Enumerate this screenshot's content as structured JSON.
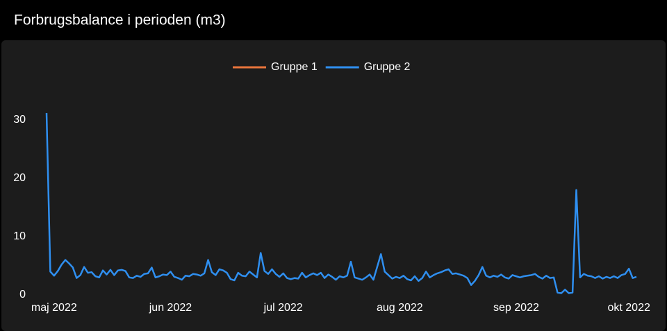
{
  "chart_data": {
    "type": "line",
    "title": "Forbrugsbalance i perioden (m3)",
    "categories": [
      null,
      null,
      "maj 2022",
      null,
      null,
      null,
      null,
      null,
      null,
      null,
      null,
      null,
      null,
      null,
      null,
      null,
      null,
      null,
      null,
      null,
      null,
      null,
      null,
      null,
      null,
      null,
      null,
      null,
      null,
      null,
      null,
      null,
      null,
      "jun 2022",
      null,
      null,
      null,
      null,
      null,
      null,
      null,
      null,
      null,
      null,
      null,
      null,
      null,
      null,
      null,
      null,
      null,
      null,
      null,
      null,
      null,
      null,
      null,
      null,
      null,
      null,
      null,
      null,
      null,
      "jul 2022",
      null,
      null,
      null,
      null,
      null,
      null,
      null,
      null,
      null,
      null,
      null,
      null,
      null,
      null,
      null,
      null,
      null,
      null,
      null,
      null,
      null,
      null,
      null,
      null,
      null,
      null,
      null,
      null,
      null,
      null,
      "aug 2022",
      null,
      null,
      null,
      null,
      null,
      null,
      null,
      null,
      null,
      null,
      null,
      null,
      null,
      null,
      null,
      null,
      null,
      null,
      null,
      null,
      null,
      null,
      null,
      null,
      null,
      null,
      null,
      null,
      null,
      null,
      "sep 2022",
      null,
      null,
      null,
      null,
      null,
      null,
      null,
      null,
      null,
      null,
      null,
      null,
      null,
      null,
      null,
      null,
      null,
      null,
      null,
      null,
      null,
      null,
      null,
      null,
      null,
      null,
      null,
      null,
      null,
      "okt 2022",
      null,
      null
    ],
    "series": [
      {
        "name": "Gruppe 1",
        "color": "#e8743b",
        "values": [
          null,
          null,
          null,
          null,
          null,
          null,
          null,
          null,
          null,
          null,
          null,
          null,
          null,
          null,
          null,
          null,
          null,
          null,
          null,
          null,
          null,
          null,
          null,
          null,
          null,
          null,
          null,
          null,
          null,
          null,
          null,
          null,
          null,
          null,
          null,
          null,
          null,
          null,
          null,
          null,
          null,
          null,
          null,
          null,
          null,
          null,
          null,
          null,
          null,
          null,
          null,
          null,
          null,
          null,
          null,
          null,
          null,
          null,
          null,
          null,
          null,
          null,
          null,
          null,
          null,
          null,
          null,
          null,
          null,
          null,
          null,
          null,
          null,
          null,
          null,
          null,
          null,
          null,
          null,
          null,
          null,
          null,
          null,
          null,
          null,
          null,
          null,
          null,
          null,
          null,
          null,
          null,
          null,
          null,
          null,
          null,
          null,
          null,
          null,
          null,
          null,
          null,
          null,
          null,
          null,
          null,
          null,
          null,
          null,
          null,
          null,
          null,
          null,
          null,
          null,
          null,
          null,
          null,
          null,
          null,
          null,
          null,
          null,
          null,
          null,
          null,
          null,
          null,
          null,
          null,
          null,
          null,
          null,
          null,
          null,
          null,
          null,
          null,
          null,
          null,
          null,
          null,
          null,
          null,
          null,
          null,
          null,
          null,
          null,
          null,
          null,
          null,
          null,
          null,
          null,
          null,
          null,
          null
        ]
      },
      {
        "name": "Gruppe 2",
        "color": "#2f8ff0",
        "values": [
          31.2,
          4.0,
          3.3,
          4.1,
          5.2,
          6.0,
          5.4,
          4.7,
          2.9,
          3.4,
          4.8,
          3.8,
          3.9,
          3.2,
          3.0,
          4.2,
          3.5,
          4.3,
          3.4,
          4.2,
          4.3,
          4.1,
          3.0,
          2.9,
          3.3,
          3.1,
          3.6,
          3.7,
          4.7,
          3.0,
          3.2,
          3.5,
          3.4,
          4.0,
          3.1,
          2.9,
          2.6,
          3.3,
          3.2,
          3.6,
          3.5,
          3.3,
          3.7,
          6.0,
          3.9,
          3.4,
          4.4,
          4.2,
          3.8,
          2.7,
          2.5,
          3.8,
          3.3,
          3.2,
          4.0,
          3.5,
          3.0,
          7.2,
          4.1,
          3.6,
          4.4,
          3.6,
          3.1,
          3.7,
          2.9,
          2.7,
          2.9,
          2.8,
          3.8,
          3.0,
          3.4,
          3.7,
          3.4,
          3.8,
          2.9,
          3.5,
          3.1,
          2.6,
          3.2,
          3.0,
          3.3,
          5.7,
          3.0,
          2.8,
          2.6,
          3.0,
          3.5,
          2.6,
          4.8,
          7.0,
          4.0,
          3.4,
          2.8,
          3.1,
          2.9,
          3.3,
          2.7,
          2.5,
          3.2,
          2.4,
          2.9,
          4.0,
          3.0,
          3.4,
          3.7,
          3.9,
          4.2,
          4.4,
          3.6,
          3.7,
          3.5,
          3.3,
          2.9,
          1.7,
          2.4,
          3.4,
          4.8,
          3.3,
          3.0,
          3.3,
          3.1,
          3.5,
          3.0,
          2.8,
          3.4,
          3.2,
          3.0,
          3.2,
          3.3,
          3.4,
          3.6,
          3.1,
          2.8,
          3.3,
          2.9,
          3.0,
          0.4,
          0.3,
          0.9,
          0.3,
          0.4,
          18.0,
          3.0,
          3.6,
          3.3,
          3.2,
          2.9,
          3.2,
          2.8,
          3.1,
          2.9,
          3.2,
          2.9,
          3.4,
          3.6,
          4.5,
          2.9,
          3.1
        ]
      }
    ],
    "ylim": [
      0,
      32
    ],
    "yticks": [
      0,
      10,
      20,
      30
    ],
    "grid": false,
    "legend": "top"
  }
}
